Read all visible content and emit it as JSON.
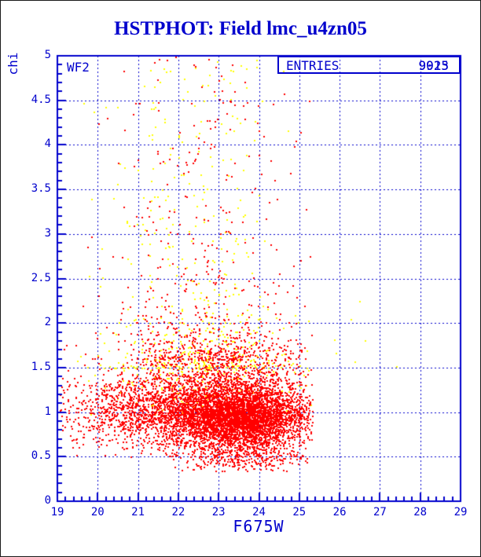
{
  "colors": {
    "accent": "#0000cd",
    "red": "#ff0000",
    "yellow": "#ffff00",
    "background": "#ffffff"
  },
  "chart_data": {
    "type": "scatter",
    "title": "HSTPHOT: Field lmc_u4zn05",
    "xlabel": "F675W",
    "ylabel": "chi",
    "detector_label": "WF2",
    "legend": {
      "label": "ENTRIES",
      "values_overprinted": [
        "9023",
        "9915"
      ],
      "position": "top-right"
    },
    "xlim": [
      19,
      29
    ],
    "ylim": [
      0,
      5
    ],
    "x_tick_values": [
      19,
      20,
      21,
      22,
      23,
      24,
      25,
      26,
      27,
      28,
      29
    ],
    "x_tick_labels": [
      "19",
      "20",
      "21",
      "22",
      "23",
      "24",
      "25",
      "26",
      "27",
      "28",
      "29"
    ],
    "x_minor_step": 0.2,
    "y_tick_values": [
      0,
      0.5,
      1,
      1.5,
      2,
      2.5,
      3,
      3.5,
      4,
      4.5,
      5
    ],
    "y_tick_labels": [
      "0",
      "0.5",
      "1",
      "1.5",
      "2",
      "2.5",
      "3",
      "3.5",
      "4",
      "4.5",
      "5"
    ],
    "y_minor_step": 0.1,
    "grid": "dashed-major",
    "marker": "square",
    "marker_size_px": 2,
    "series": [
      {
        "name": "yellow-points",
        "color": "#ffff00",
        "clusters": [
          {
            "n": 380,
            "x": {
              "dist": "gauss",
              "mean": 22.4,
              "sigma": 1.15,
              "min": 19.3,
              "max": 25.2
            },
            "y": {
              "dist": "powtail",
              "min": 1.5,
              "max": 5.0,
              "power": 2.2
            }
          },
          {
            "n": 270,
            "x": {
              "dist": "gauss",
              "mean": 22.6,
              "sigma": 1.2,
              "min": 19.3,
              "max": 25.3
            },
            "y": {
              "dist": "gauss",
              "mean": 1.45,
              "sigma": 0.35,
              "min": 0.95,
              "max": 2.4
            }
          },
          {
            "n": 7,
            "x": {
              "dist": "uniform",
              "min": 25.4,
              "max": 28.3
            },
            "y": {
              "dist": "uniform",
              "min": 1.5,
              "max": 2.7
            }
          }
        ]
      },
      {
        "name": "red-points",
        "color": "#ff0000",
        "clusters": [
          {
            "n": 3400,
            "x": {
              "dist": "gauss",
              "mean": 23.55,
              "sigma": 0.85,
              "min": 19.05,
              "max": 25.32
            },
            "y": {
              "dist": "gauss",
              "mean": 0.95,
              "sigma": 0.16,
              "min": 0.45,
              "max": 1.5
            }
          },
          {
            "n": 1900,
            "x": {
              "dist": "gauss",
              "mean": 21.9,
              "sigma": 1.5,
              "min": 19.05,
              "max": 25.32
            },
            "y": {
              "dist": "gauss",
              "mean": 1.0,
              "sigma": 0.22,
              "min": 0.5,
              "max": 1.7
            }
          },
          {
            "n": 450,
            "x": {
              "dist": "gauss",
              "mean": 23.6,
              "sigma": 0.8,
              "min": 21.3,
              "max": 25.2
            },
            "y": {
              "dist": "gauss",
              "mean": 0.55,
              "sigma": 0.12,
              "min": 0.34,
              "max": 0.8
            }
          },
          {
            "n": 1150,
            "x": {
              "dist": "gauss",
              "mean": 22.9,
              "sigma": 1.2,
              "min": 19.05,
              "max": 25.32
            },
            "y": {
              "dist": "gauss",
              "mean": 1.35,
              "sigma": 0.3,
              "min": 0.9,
              "max": 2.4
            }
          },
          {
            "n": 430,
            "x": {
              "dist": "gauss",
              "mean": 22.6,
              "sigma": 1.2,
              "min": 19.2,
              "max": 25.25
            },
            "y": {
              "dist": "powtail",
              "min": 1.6,
              "max": 5.0,
              "power": 2.6
            }
          }
        ]
      }
    ]
  }
}
